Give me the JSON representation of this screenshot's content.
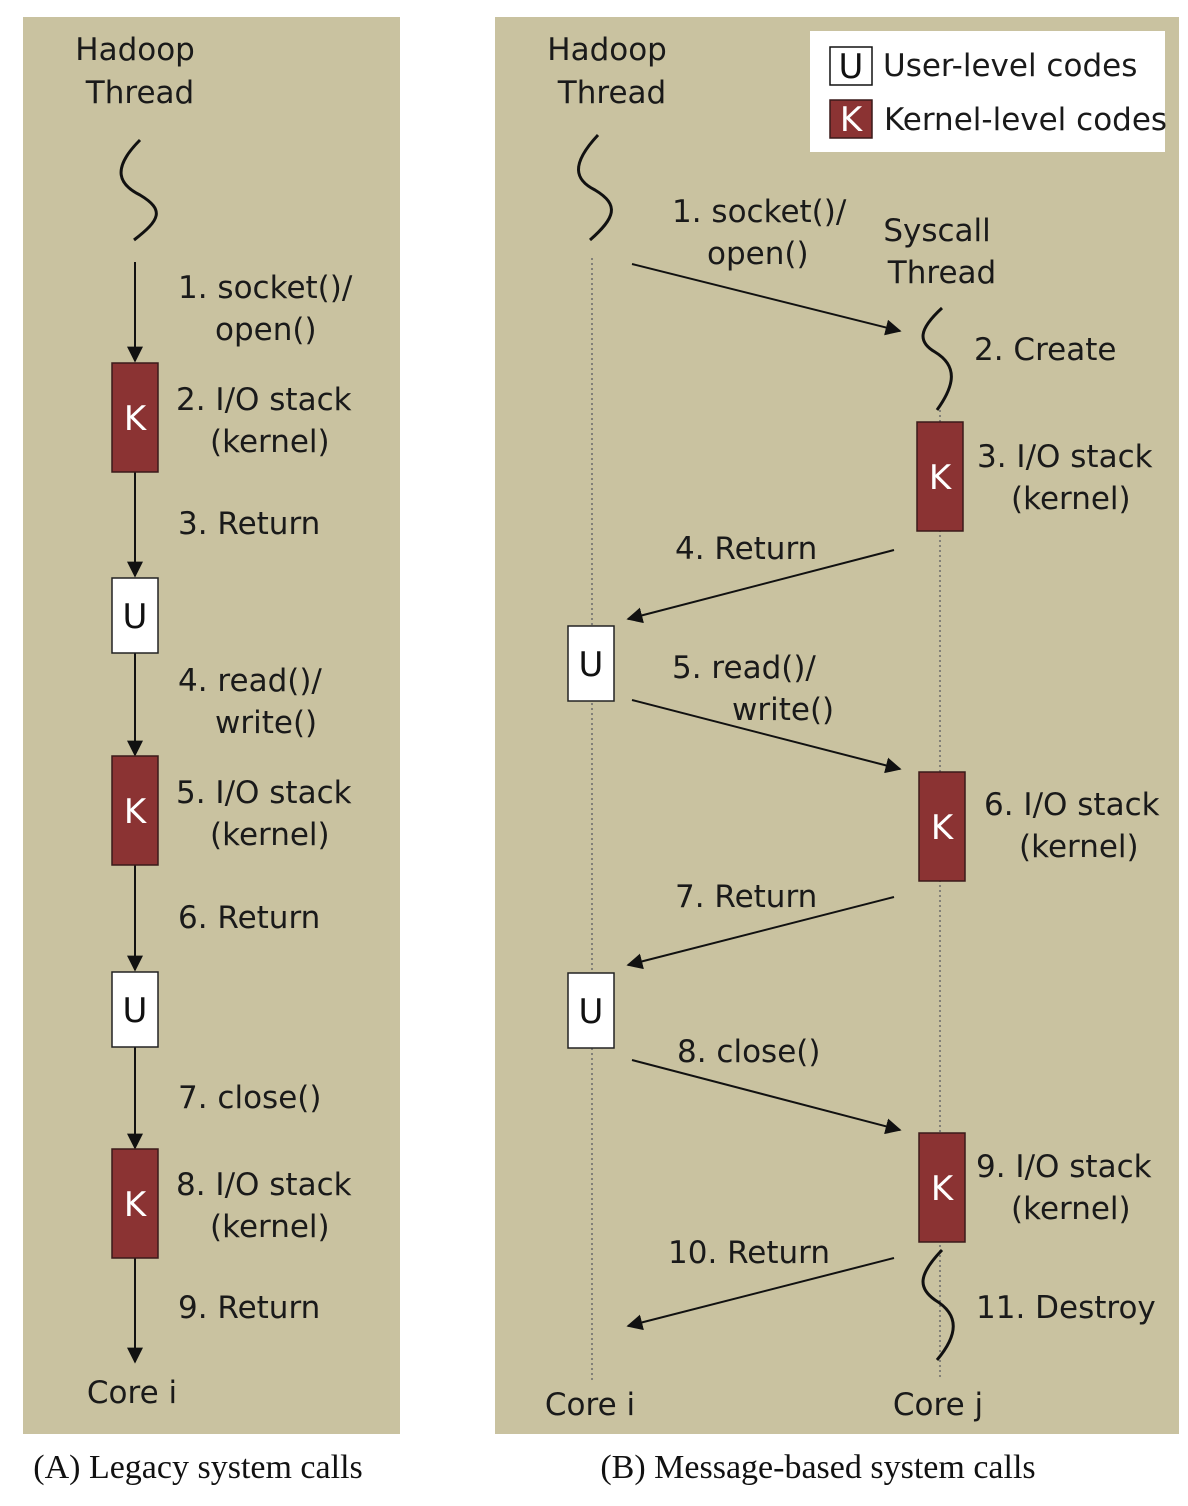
{
  "panel_a": {
    "caption": "(A) Legacy system calls",
    "thread_title": [
      "Hadoop",
      "Thread"
    ],
    "core": "Core i",
    "steps": [
      [
        "1. socket()/",
        "open()"
      ],
      [
        "2. I/O stack",
        "(kernel)"
      ],
      [
        "3. Return"
      ],
      [
        "4. read()/",
        "write()"
      ],
      [
        "5. I/O stack",
        "(kernel)"
      ],
      [
        "6. Return"
      ],
      [
        "7. close()"
      ],
      [
        "8. I/O stack",
        "(kernel)"
      ],
      [
        "9. Return"
      ]
    ]
  },
  "panel_b": {
    "caption": "(B) Message-based system calls",
    "hadoop_title": [
      "Hadoop",
      "Thread"
    ],
    "syscall_title": [
      "Syscall",
      "Thread"
    ],
    "core_left": "Core i",
    "core_right": "Core j",
    "steps": [
      [
        "1. socket()/",
        "open()"
      ],
      [
        "2. Create"
      ],
      [
        "3. I/O stack",
        "(kernel)"
      ],
      [
        "4. Return"
      ],
      [
        "5. read()/",
        "write()"
      ],
      [
        "6. I/O stack",
        "(kernel)"
      ],
      [
        "7. Return"
      ],
      [
        "8. close()"
      ],
      [
        "9. I/O stack",
        "(kernel)"
      ],
      [
        "10. Return"
      ],
      [
        "11. Destroy"
      ]
    ]
  },
  "legend": {
    "user_letter": "U",
    "user_label": "User-level codes",
    "kernel_letter": "K",
    "kernel_label": "Kernel-level codes"
  },
  "colors": {
    "panel_bg": "#c9c2a0",
    "kernel_box": "#8b3333",
    "user_box": "#ffffff"
  }
}
